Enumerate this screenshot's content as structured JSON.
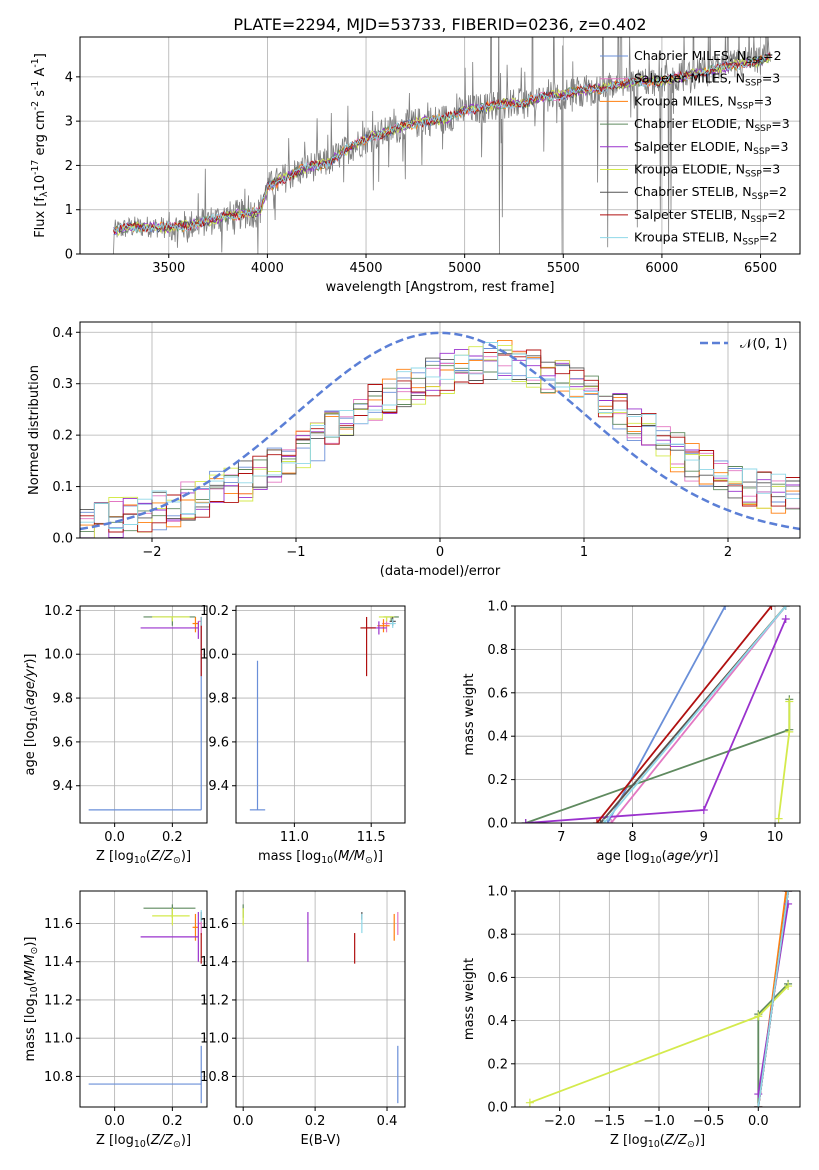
{
  "figure_title": "PLATE=2294, MJD=53733, FIBERID=0236, z=0.402",
  "series_colors": [
    "#6a8fd8",
    "#e377c2",
    "#ff7f0e",
    "#5f8a5f",
    "#9a32cd",
    "#d4ea4c",
    "#555555",
    "#b01010",
    "#8fd8e8"
  ],
  "legend_labels": [
    "Chabrier MILES, N$_{SSP}$=2",
    "Salpeter MILES, N$_{SSP}$=3",
    "Kroupa MILES, N$_{SSP}$=3",
    "Chabrier ELODIE, N$_{SSP}$=3",
    "Salpeter ELODIE, N$_{SSP}$=3",
    "Kroupa ELODIE, N$_{SSP}$=3",
    "Chabrier STELIB, N$_{SSP}$=2",
    "Salpeter STELIB, N$_{SSP}$=2",
    "Kroupa STELIB, N$_{SSP}$=2"
  ],
  "chart_data": [
    {
      "id": "spectrum",
      "type": "line",
      "xlabel": "wavelength [Angstrom, rest frame]",
      "ylabel": "Flux [f$_\\lambda$10$^{-17}$ erg cm$^{-2}$ s$^{-1}$ A$^{-1}$]",
      "xlim": [
        3050,
        6700
      ],
      "ylim": [
        0,
        4.9
      ],
      "xticks": [
        3500,
        4000,
        4500,
        5000,
        5500,
        6000,
        6500
      ],
      "xtick_labels": [
        "3500",
        "4000",
        "4500",
        "5000",
        "5500",
        "6000",
        "6500"
      ],
      "yticks": [
        0,
        1,
        2,
        3,
        4
      ],
      "ytick_labels": [
        "0",
        "1",
        "2",
        "3",
        "4"
      ],
      "continuum": {
        "x": [
          3220,
          3300,
          3400,
          3500,
          3600,
          3700,
          3800,
          3900,
          3960,
          4000,
          4100,
          4200,
          4300,
          4400,
          4500,
          4600,
          4700,
          4800,
          4900,
          5000,
          5100,
          5200,
          5300,
          5400,
          5500,
          5600,
          5700,
          5800,
          5900,
          6000,
          6100,
          6200,
          6300,
          6400,
          6500,
          6550
        ],
        "y": [
          0.52,
          0.6,
          0.62,
          0.6,
          0.65,
          0.75,
          0.85,
          0.92,
          0.95,
          1.5,
          1.75,
          1.95,
          2.05,
          2.35,
          2.6,
          2.75,
          2.9,
          3.0,
          3.05,
          3.25,
          3.3,
          3.4,
          3.4,
          3.55,
          3.6,
          3.7,
          3.75,
          3.85,
          3.9,
          3.9,
          4.0,
          4.1,
          4.2,
          4.3,
          4.35,
          4.45
        ]
      },
      "legend": "upper right"
    },
    {
      "id": "residuals",
      "type": "step",
      "xlabel": "(data-model)/error",
      "ylabel": "Normed distribution",
      "xlim": [
        -2.5,
        2.5
      ],
      "ylim": [
        0,
        0.42
      ],
      "xticks": [
        -2,
        -1,
        0,
        1,
        2
      ],
      "xtick_labels": [
        "−2",
        "−1",
        "0",
        "1",
        "2"
      ],
      "yticks": [
        0.0,
        0.1,
        0.2,
        0.3,
        0.4
      ],
      "ytick_labels": [
        "0.0",
        "0.1",
        "0.2",
        "0.3",
        "0.4"
      ],
      "bin_edges_range": [
        -2.5,
        2.5
      ],
      "n_bins": 50,
      "envelope": [
        0.025,
        0.03,
        0.04,
        0.045,
        0.05,
        0.055,
        0.06,
        0.07,
        0.08,
        0.09,
        0.1,
        0.11,
        0.125,
        0.14,
        0.155,
        0.17,
        0.19,
        0.21,
        0.23,
        0.245,
        0.26,
        0.275,
        0.29,
        0.3,
        0.31,
        0.32,
        0.33,
        0.34,
        0.345,
        0.345,
        0.34,
        0.33,
        0.32,
        0.31,
        0.3,
        0.285,
        0.265,
        0.245,
        0.225,
        0.205,
        0.185,
        0.165,
        0.15,
        0.135,
        0.12,
        0.11,
        0.1,
        0.09,
        0.085,
        0.08
      ],
      "gaussian_label": "$\\mathcal{N}(0,1)$",
      "gaussian_color": "#5b7fd6",
      "legend": "upper right"
    },
    {
      "id": "age_vs_Z",
      "type": "errorbar",
      "xlabel": "Z [log$_{10}$($Z/Z_\\odot$)]",
      "ylabel": "age  [log$_{10}$($age/yr$)]",
      "xlim": [
        -0.12,
        0.32
      ],
      "ylim": [
        9.23,
        10.22
      ],
      "xticks": [
        0.0,
        0.2
      ],
      "xtick_labels": [
        "0.0",
        "0.2"
      ],
      "yticks": [
        9.4,
        9.6,
        9.8,
        10.0,
        10.2
      ],
      "ytick_labels": [
        "9.4",
        "9.6",
        "9.8",
        "10.0",
        "10.2"
      ],
      "points": [
        {
          "x": 0.3,
          "y": 9.29,
          "xerr": [
            0.39,
            0.0
          ],
          "yerr": [
            0.0,
            0.88
          ],
          "c": 0
        },
        {
          "x": 0.3,
          "y": 10.15,
          "xerr": [
            0.01,
            0.0
          ],
          "yerr": [
            0.03,
            0.02
          ],
          "c": 1
        },
        {
          "x": 0.28,
          "y": 10.14,
          "xerr": [
            0.01,
            0.01
          ],
          "yerr": [
            0.04,
            0.03
          ],
          "c": 2
        },
        {
          "x": 0.2,
          "y": 10.17,
          "xerr": [
            0.1,
            0.08
          ],
          "yerr": [
            0.04,
            0.0
          ],
          "c": 3
        },
        {
          "x": 0.29,
          "y": 10.12,
          "xerr": [
            0.2,
            0.0
          ],
          "yerr": [
            0.05,
            0.03
          ],
          "c": 4
        },
        {
          "x": 0.2,
          "y": 10.17,
          "xerr": [
            0.07,
            0.06
          ],
          "yerr": [
            0.02,
            0.0
          ],
          "c": 5
        },
        {
          "x": 0.3,
          "y": 10.15,
          "xerr": [
            0.0,
            0.0
          ],
          "yerr": [
            0.02,
            0.02
          ],
          "c": 6
        },
        {
          "x": 0.3,
          "y": 10.12,
          "xerr": [
            0.0,
            0.0
          ],
          "yerr": [
            0.22,
            0.05
          ],
          "c": 7
        },
        {
          "x": 0.3,
          "y": 10.15,
          "xerr": [
            0.0,
            0.0
          ],
          "yerr": [
            0.02,
            0.02
          ],
          "c": 8
        }
      ]
    },
    {
      "id": "age_vs_mass",
      "type": "errorbar",
      "xlabel": "mass [log$_{10}$($M/M_\\odot$)]",
      "ylabel": "",
      "xlim": [
        10.62,
        11.72
      ],
      "ylim": [
        9.23,
        10.22
      ],
      "xticks": [
        11.0,
        11.5
      ],
      "xtick_labels": [
        "11.0",
        "11.5"
      ],
      "yticks": [
        9.4,
        9.6,
        9.8,
        10.0,
        10.2
      ],
      "ytick_labels": [
        "9.4",
        "9.6",
        "9.8",
        "10.0",
        "10.2"
      ],
      "points": [
        {
          "x": 10.76,
          "y": 9.29,
          "xerr": [
            0.05,
            0.05
          ],
          "yerr": [
            0.0,
            0.68
          ],
          "c": 0
        },
        {
          "x": 11.6,
          "y": 10.14,
          "xerr": [
            0.03,
            0.03
          ],
          "yerr": [
            0.04,
            0.03
          ],
          "c": 1
        },
        {
          "x": 11.58,
          "y": 10.13,
          "xerr": [
            0.04,
            0.04
          ],
          "yerr": [
            0.03,
            0.03
          ],
          "c": 2
        },
        {
          "x": 11.63,
          "y": 10.17,
          "xerr": [
            0.05,
            0.05
          ],
          "yerr": [
            0.02,
            0.0
          ],
          "c": 3
        },
        {
          "x": 11.55,
          "y": 10.12,
          "xerr": [
            0.08,
            0.05
          ],
          "yerr": [
            0.03,
            0.03
          ],
          "c": 4
        },
        {
          "x": 11.6,
          "y": 10.17,
          "xerr": [
            0.05,
            0.05
          ],
          "yerr": [
            0.02,
            0.0
          ],
          "c": 5
        },
        {
          "x": 11.64,
          "y": 10.15,
          "xerr": [
            0.02,
            0.02
          ],
          "yerr": [
            0.02,
            0.02
          ],
          "c": 6
        },
        {
          "x": 11.47,
          "y": 10.12,
          "xerr": [
            0.04,
            0.06
          ],
          "yerr": [
            0.22,
            0.05
          ],
          "c": 7
        },
        {
          "x": 11.64,
          "y": 10.14,
          "xerr": [
            0.02,
            0.02
          ],
          "yerr": [
            0.02,
            0.02
          ],
          "c": 8
        }
      ]
    },
    {
      "id": "massweight_vs_age",
      "type": "line",
      "xlabel": "age  [log$_{10}$($age/yr$)]",
      "ylabel": "mass weight",
      "xlim": [
        6.35,
        10.35
      ],
      "ylim": [
        0,
        1
      ],
      "xticks": [
        7,
        8,
        9,
        10
      ],
      "xtick_labels": [
        "7",
        "8",
        "9",
        "10"
      ],
      "yticks": [
        0.0,
        0.2,
        0.4,
        0.6,
        0.8,
        1.0
      ],
      "ytick_labels": [
        "0.0",
        "0.2",
        "0.4",
        "0.6",
        "0.8",
        "1.0"
      ],
      "series": [
        {
          "c": 0,
          "x": [
            7.65,
            9.3
          ],
          "y": [
            0.0,
            1.0
          ]
        },
        {
          "c": 1,
          "x": [
            7.7,
            10.15
          ],
          "y": [
            0.0,
            1.0
          ]
        },
        {
          "c": 2,
          "x": [
            7.55,
            10.15
          ],
          "y": [
            0.0,
            1.0
          ]
        },
        {
          "c": 3,
          "x": [
            6.5,
            10.2,
            10.2
          ],
          "y": [
            0.0,
            0.43,
            0.57
          ]
        },
        {
          "c": 4,
          "x": [
            6.5,
            9.0,
            10.15
          ],
          "y": [
            0.0,
            0.06,
            0.94
          ]
        },
        {
          "c": 5,
          "x": [
            10.05,
            10.2,
            10.2
          ],
          "y": [
            0.02,
            0.42,
            0.56
          ]
        },
        {
          "c": 6,
          "x": [
            7.55,
            10.15
          ],
          "y": [
            0.0,
            1.0
          ]
        },
        {
          "c": 7,
          "x": [
            7.5,
            9.95
          ],
          "y": [
            0.0,
            1.0
          ]
        },
        {
          "c": 8,
          "x": [
            7.6,
            10.15
          ],
          "y": [
            0.0,
            1.0
          ]
        }
      ]
    },
    {
      "id": "mass_vs_Z",
      "type": "errorbar",
      "xlabel": "Z [log$_{10}$($Z/Z_\\odot$)]",
      "ylabel": "mass [log$_{10}$($M/M_\\odot$)]",
      "xlim": [
        -0.12,
        0.32
      ],
      "ylim": [
        10.64,
        11.77
      ],
      "xticks": [
        0.0,
        0.2
      ],
      "xtick_labels": [
        "0.0",
        "0.2"
      ],
      "yticks": [
        10.8,
        11.0,
        11.2,
        11.4,
        11.6
      ],
      "ytick_labels": [
        "10.8",
        "11.0",
        "11.2",
        "11.4",
        "11.6"
      ],
      "points": [
        {
          "x": 0.3,
          "y": 10.76,
          "xerr": [
            0.39,
            0.0
          ],
          "yerr": [
            0.1,
            0.2
          ],
          "c": 0
        },
        {
          "x": 0.3,
          "y": 11.6,
          "xerr": [
            0.01,
            0.0
          ],
          "yerr": [
            0.06,
            0.06
          ],
          "c": 1
        },
        {
          "x": 0.28,
          "y": 11.58,
          "xerr": [
            0.01,
            0.01
          ],
          "yerr": [
            0.07,
            0.07
          ],
          "c": 2
        },
        {
          "x": 0.2,
          "y": 11.68,
          "xerr": [
            0.1,
            0.08
          ],
          "yerr": [
            0.05,
            0.02
          ],
          "c": 3
        },
        {
          "x": 0.29,
          "y": 11.53,
          "xerr": [
            0.2,
            0.0
          ],
          "yerr": [
            0.13,
            0.13
          ],
          "c": 4
        },
        {
          "x": 0.2,
          "y": 11.64,
          "xerr": [
            0.07,
            0.06
          ],
          "yerr": [
            0.05,
            0.04
          ],
          "c": 5
        },
        {
          "x": 0.3,
          "y": 11.64,
          "xerr": [
            0.0,
            0.0
          ],
          "yerr": [
            0.02,
            0.02
          ],
          "c": 6
        },
        {
          "x": 0.3,
          "y": 11.47,
          "xerr": [
            0.0,
            0.0
          ],
          "yerr": [
            0.08,
            0.08
          ],
          "c": 7
        },
        {
          "x": 0.3,
          "y": 11.64,
          "xerr": [
            0.0,
            0.0
          ],
          "yerr": [
            0.03,
            0.03
          ],
          "c": 8
        }
      ]
    },
    {
      "id": "mass_vs_ebv",
      "type": "errorbar",
      "xlabel": "E(B-V)",
      "ylabel": "",
      "xlim": [
        -0.02,
        0.45
      ],
      "ylim": [
        10.64,
        11.77
      ],
      "xticks": [
        0.0,
        0.2,
        0.4
      ],
      "xtick_labels": [
        "0.0",
        "0.2",
        "0.4"
      ],
      "yticks": [
        10.8,
        11.0,
        11.2,
        11.4,
        11.6
      ],
      "ytick_labels": [
        "10.8",
        "11.0",
        "11.2",
        "11.4",
        "11.6"
      ],
      "points": [
        {
          "x": 0.43,
          "y": 10.76,
          "xerr": [
            0,
            0
          ],
          "yerr": [
            0.1,
            0.2
          ],
          "c": 0
        },
        {
          "x": 0.43,
          "y": 11.6,
          "xerr": [
            0,
            0
          ],
          "yerr": [
            0.06,
            0.06
          ],
          "c": 1
        },
        {
          "x": 0.42,
          "y": 11.58,
          "xerr": [
            0,
            0
          ],
          "yerr": [
            0.07,
            0.07
          ],
          "c": 2
        },
        {
          "x": 0.0,
          "y": 11.68,
          "xerr": [
            0,
            0
          ],
          "yerr": [
            0.05,
            0.02
          ],
          "c": 3
        },
        {
          "x": 0.18,
          "y": 11.53,
          "xerr": [
            0,
            0
          ],
          "yerr": [
            0.13,
            0.13
          ],
          "c": 4
        },
        {
          "x": 0.0,
          "y": 11.64,
          "xerr": [
            0,
            0
          ],
          "yerr": [
            0.05,
            0.04
          ],
          "c": 5
        },
        {
          "x": 0.33,
          "y": 11.64,
          "xerr": [
            0,
            0
          ],
          "yerr": [
            0.02,
            0.02
          ],
          "c": 6
        },
        {
          "x": 0.31,
          "y": 11.47,
          "xerr": [
            0,
            0
          ],
          "yerr": [
            0.08,
            0.08
          ],
          "c": 7
        },
        {
          "x": 0.33,
          "y": 11.6,
          "xerr": [
            0,
            0
          ],
          "yerr": [
            0.05,
            0.05
          ],
          "c": 8
        }
      ]
    },
    {
      "id": "massweight_vs_Z",
      "type": "line",
      "xlabel": "Z [log$_{10}$($Z/Z_\\odot$)]",
      "ylabel": "mass weight",
      "xlim": [
        -2.45,
        0.42
      ],
      "ylim": [
        0,
        1
      ],
      "xticks": [
        -2.0,
        -1.5,
        -1.0,
        -0.5,
        0.0
      ],
      "xtick_labels": [
        "−2.0",
        "−1.5",
        "−1.0",
        "−0.5",
        "0.0"
      ],
      "yticks": [
        0.0,
        0.2,
        0.4,
        0.6,
        0.8,
        1.0
      ],
      "ytick_labels": [
        "0.0",
        "0.2",
        "0.4",
        "0.6",
        "0.8",
        "1.0"
      ],
      "series": [
        {
          "c": 0,
          "x": [
            0.0,
            0.3
          ],
          "y": [
            0.0,
            1.0
          ]
        },
        {
          "c": 1,
          "x": [
            0.0,
            0.3
          ],
          "y": [
            0.0,
            1.0
          ]
        },
        {
          "c": 2,
          "x": [
            0.0,
            0.28
          ],
          "y": [
            0.0,
            1.0
          ]
        },
        {
          "c": 3,
          "x": [
            0.0,
            0.0,
            0.3
          ],
          "y": [
            0.0,
            0.43,
            0.57
          ]
        },
        {
          "c": 4,
          "x": [
            0.0,
            0.3
          ],
          "y": [
            0.06,
            0.94
          ]
        },
        {
          "c": 5,
          "x": [
            -2.3,
            0.0,
            0.3
          ],
          "y": [
            0.02,
            0.42,
            0.56
          ]
        },
        {
          "c": 6,
          "x": [
            0.0,
            0.3
          ],
          "y": [
            0.0,
            1.0
          ]
        },
        {
          "c": 7,
          "x": [
            0.0,
            0.3
          ],
          "y": [
            0.0,
            1.0
          ]
        },
        {
          "c": 8,
          "x": [
            0.0,
            0.3
          ],
          "y": [
            0.0,
            1.0
          ]
        }
      ]
    }
  ]
}
